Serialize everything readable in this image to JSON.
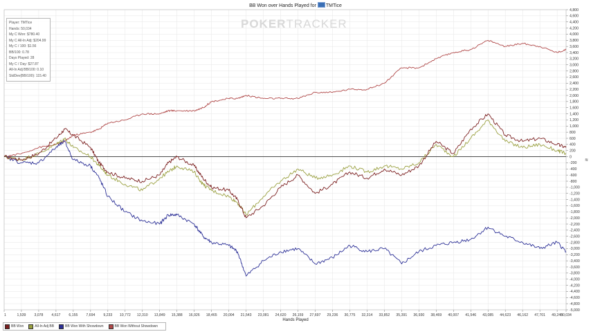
{
  "title": {
    "text": "BB Won over Hands Played for",
    "player": "TMTice"
  },
  "watermark": {
    "text_bold": "POKER",
    "text_light": "TRACKER"
  },
  "stats": [
    "Player: TMTice",
    "Hands: 50,034",
    "My C Won: $780.40",
    "My C All-In Adj: $204.99",
    "My C / 100: $1.56",
    "BB/100: 0.78",
    "Days Played: 28",
    "My C / Day: $27.87",
    "All-In Adj BB/100: 0.10",
    "StdDev(BB/100): 115.40"
  ],
  "colors": {
    "bb_won": "#7b1f1f",
    "all_in_adj": "#9aa040",
    "with_showdown": "#2b2f96",
    "without_showdown": "#b04848",
    "zero_line": "#333333",
    "grid": "#e6e6e6"
  },
  "chart_data": {
    "type": "line",
    "title": "BB Won over Hands Played for TMTice",
    "xlabel": "Hands Played",
    "ylabel": "",
    "xlim": [
      1,
      50034
    ],
    "ylim": [
      -5000,
      4800
    ],
    "y_ticks": [
      4800,
      4600,
      4400,
      4200,
      4000,
      3800,
      3600,
      3400,
      3200,
      3000,
      2800,
      2600,
      2400,
      2200,
      2000,
      1800,
      1600,
      1400,
      1200,
      1000,
      800,
      600,
      400,
      200,
      0,
      -200,
      -400,
      -600,
      -800,
      -1000,
      -1200,
      -1400,
      -1600,
      -1800,
      -2000,
      -2200,
      -2400,
      -2600,
      -2800,
      -3000,
      -3200,
      -3400,
      -3600,
      -3800,
      -4000,
      -4200,
      -4400,
      -4600,
      -4800,
      -5000
    ],
    "y_tick_labels": [
      "4,800",
      "4,600",
      "4,400",
      "4,200",
      "4,000",
      "3,800",
      "3,600",
      "3,400",
      "3,200",
      "3,000",
      "2,800",
      "2,600",
      "2,400",
      "2,200",
      "2,000",
      "1,800",
      "1,600",
      "1,400",
      "1,200",
      "1,000",
      "800",
      "600",
      "400",
      "200",
      "0",
      "-200",
      "-400",
      "-600",
      "-800",
      "-1,000",
      "-1,200",
      "-1,400",
      "-1,600",
      "-1,800",
      "-2,000",
      "-2,200",
      "-2,400",
      "-2,600",
      "-2,800",
      "-3,000",
      "-3,200",
      "-3,400",
      "-3,600",
      "-3,800",
      "-4,000",
      "-4,200",
      "-4,400",
      "-4,600",
      "-4,800",
      "-5,000"
    ],
    "x_ticks": [
      1,
      1539,
      3078,
      4617,
      6155,
      7694,
      9233,
      10772,
      12310,
      13849,
      15388,
      16926,
      18465,
      20004,
      21543,
      23081,
      24620,
      26159,
      27697,
      29236,
      30775,
      32314,
      33852,
      35391,
      36930,
      38469,
      40007,
      41546,
      43085,
      44623,
      46162,
      47701,
      49240,
      50034
    ],
    "x_tick_labels": [
      "1",
      "1,539",
      "3,078",
      "4,617",
      "6,155",
      "7,694",
      "9,233",
      "10,772",
      "12,310",
      "13,849",
      "15,388",
      "16,926",
      "18,465",
      "20,004",
      "21,543",
      "23,081",
      "24,620",
      "26,159",
      "27,697",
      "29,236",
      "30,775",
      "32,314",
      "33,852",
      "35,391",
      "36,930",
      "38,469",
      "40,007",
      "41,546",
      "43,085",
      "44,623",
      "46,162",
      "47,701",
      "49,240",
      "50,034"
    ],
    "legend_position": "bottom-left",
    "grid": true,
    "x": [
      1,
      1539,
      3078,
      4617,
      5386,
      6155,
      7694,
      8463,
      9233,
      10772,
      12310,
      13849,
      14618,
      15388,
      16926,
      17696,
      18465,
      20004,
      20774,
      21543,
      23081,
      24620,
      26159,
      27697,
      29236,
      30775,
      32314,
      33852,
      35391,
      36930,
      38469,
      40007,
      41546,
      43085,
      44623,
      46162,
      47701,
      49240,
      50034
    ],
    "series": [
      {
        "name": "BB Won",
        "values": [
          0,
          -100,
          100,
          600,
          900,
          700,
          300,
          -200,
          -500,
          -700,
          -800,
          -600,
          -200,
          0,
          -300,
          -700,
          -1000,
          -1100,
          -1400,
          -2000,
          -1600,
          -1000,
          -600,
          -1200,
          -900,
          -500,
          -700,
          -400,
          -600,
          -300,
          500,
          100,
          900,
          1400,
          700,
          500,
          600,
          400,
          300
        ]
      },
      {
        "name": "All-In Adj BB",
        "values": [
          0,
          -100,
          100,
          400,
          600,
          300,
          0,
          -300,
          -600,
          -900,
          -1100,
          -700,
          -500,
          -300,
          -500,
          -900,
          -1100,
          -1300,
          -1500,
          -1900,
          -1300,
          -800,
          -400,
          -700,
          -600,
          -300,
          -500,
          -300,
          -400,
          -200,
          400,
          0,
          600,
          1200,
          500,
          300,
          400,
          200,
          100
        ]
      },
      {
        "name": "BB Won With Showdown",
        "values": [
          0,
          -200,
          -200,
          300,
          500,
          -100,
          -300,
          -700,
          -1300,
          -1800,
          -2100,
          -2200,
          -1900,
          -1900,
          -2200,
          -2600,
          -2800,
          -2900,
          -3100,
          -3900,
          -3400,
          -3100,
          -3000,
          -3500,
          -3300,
          -2900,
          -3100,
          -3000,
          -3500,
          -3100,
          -2900,
          -2800,
          -2700,
          -2300,
          -2600,
          -2800,
          -3000,
          -2800,
          -3100
        ]
      },
      {
        "name": "BB Won Without Showdown",
        "values": [
          0,
          100,
          300,
          400,
          500,
          700,
          800,
          900,
          1100,
          1200,
          1400,
          1400,
          1500,
          1500,
          1500,
          1600,
          1800,
          1900,
          1900,
          2000,
          1900,
          1900,
          1900,
          2100,
          2100,
          2200,
          2200,
          2400,
          2900,
          2900,
          3200,
          3400,
          3500,
          3800,
          3600,
          3700,
          3600,
          3400,
          3500
        ]
      }
    ]
  },
  "legend_labels": [
    "BB Won",
    "All-In Adj BB",
    "BB Won With Showdown",
    "BB Won Without Showdown"
  ]
}
